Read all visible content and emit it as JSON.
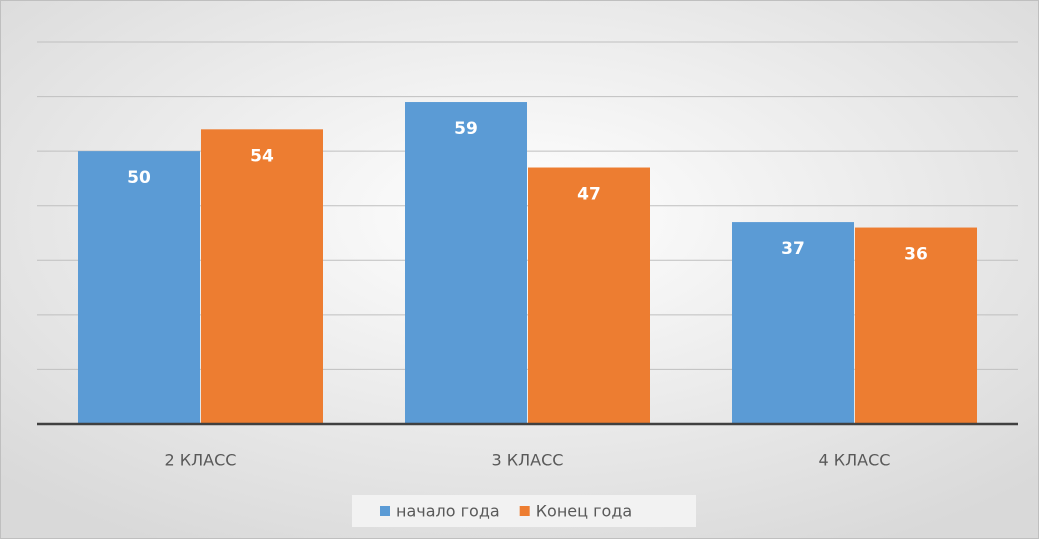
{
  "chart_data": {
    "type": "bar",
    "categories": [
      "2 КЛАСС",
      "3 КЛАСС",
      "4 КЛАСС"
    ],
    "series": [
      {
        "name": "начало года",
        "color": "#5b9bd5",
        "values": [
          50,
          59,
          37
        ]
      },
      {
        "name": "Конец года",
        "color": "#ed7d31",
        "values": [
          54,
          47,
          36
        ]
      }
    ],
    "ylim": [
      0,
      70
    ],
    "yticks": [
      0,
      10,
      20,
      30,
      40,
      50,
      60,
      70
    ],
    "grid": true,
    "legend": "bottom"
  }
}
